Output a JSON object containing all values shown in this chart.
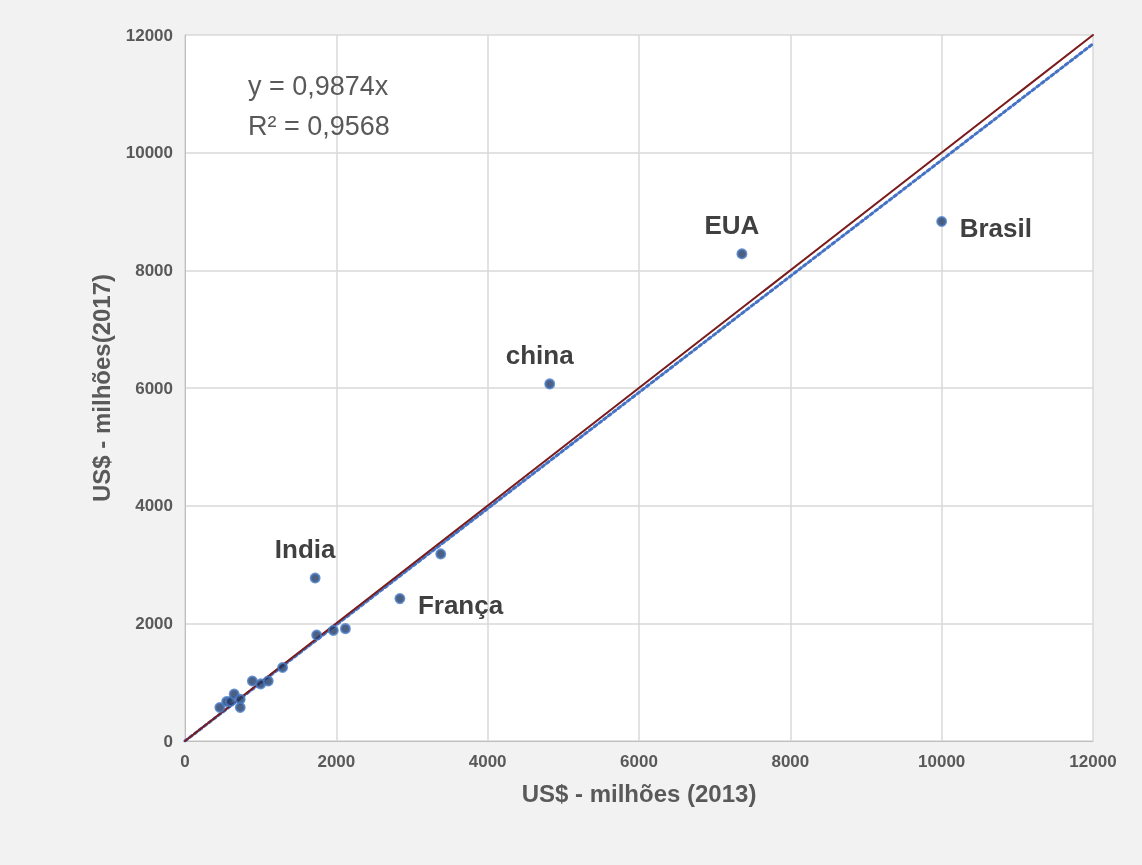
{
  "chart_data": {
    "type": "scatter",
    "xlabel": "US$ - milhões (2013)",
    "ylabel": "US$ - milhões(2017)",
    "xlim": [
      0,
      12000
    ],
    "ylim": [
      0,
      12000
    ],
    "xticks": [
      0,
      2000,
      4000,
      6000,
      8000,
      10000,
      12000
    ],
    "yticks": [
      0,
      2000,
      4000,
      6000,
      8000,
      10000,
      12000
    ],
    "grid": true,
    "series": [
      {
        "marker": "circle",
        "color": "#1f3864",
        "x": [
          460,
          550,
          600,
          650,
          730,
          730,
          890,
          1000,
          1100,
          1290,
          1720,
          1740,
          1960,
          2120,
          2840,
          3380,
          4820,
          7360,
          10000
        ],
        "values": [
          570,
          670,
          670,
          800,
          710,
          570,
          1020,
          970,
          1020,
          1250,
          2770,
          1800,
          1880,
          1910,
          2420,
          3180,
          6070,
          8280,
          8830
        ]
      },
      {
        "type": "line",
        "marker": "none",
        "color": "#4472c4",
        "line_style": "dotted",
        "x": [
          0,
          12000
        ],
        "values": [
          0,
          11850
        ]
      },
      {
        "type": "line",
        "marker": "none",
        "color": "#7b1c1c",
        "line_style": "solid",
        "x": [
          0,
          12000
        ],
        "values": [
          0,
          12000
        ]
      }
    ],
    "annotations": [
      "y = 0,9874x",
      "R² = 0,9568",
      {
        "text": "India",
        "x": 1720,
        "y": 2770
      },
      {
        "text": "França",
        "x": 2840,
        "y": 2420
      },
      {
        "text": "china",
        "x": 4820,
        "y": 6070
      },
      {
        "text": "EUA",
        "x": 7360,
        "y": 8280
      },
      {
        "text": "Brasil",
        "x": 10000,
        "y": 8830
      }
    ]
  }
}
